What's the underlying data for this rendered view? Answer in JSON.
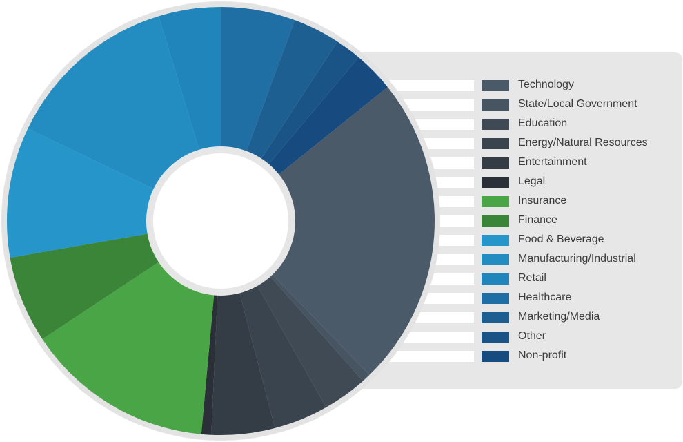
{
  "chart_data": {
    "type": "donut",
    "title": "",
    "legend_position": "right",
    "categories": [
      "Technology",
      "State/Local Government",
      "Education",
      "Energy/Natural Resources",
      "Entertainment",
      "Legal",
      "Insurance",
      "Finance",
      "Food & Beverage",
      "Manufacturing/Industrial",
      "Retail",
      "Healthcare",
      "Marketing/Media",
      "Other",
      "Non-profit"
    ],
    "values": [
      25.1,
      0.7,
      3.6,
      4.4,
      5.1,
      0.8,
      15.2,
      7.0,
      10.5,
      14.1,
      5.0,
      6.0,
      3.8,
      2.1,
      3.3
    ],
    "colors": [
      "#4b5a69",
      "#475563",
      "#3f4a55",
      "#3a444e",
      "#343d46",
      "#2a2f38",
      "#4aa547",
      "#3a8537",
      "#2695ca",
      "#238dc2",
      "#1f85ba",
      "#1f6ea4",
      "#1e5f92",
      "#1a5486",
      "#174a7e"
    ]
  }
}
